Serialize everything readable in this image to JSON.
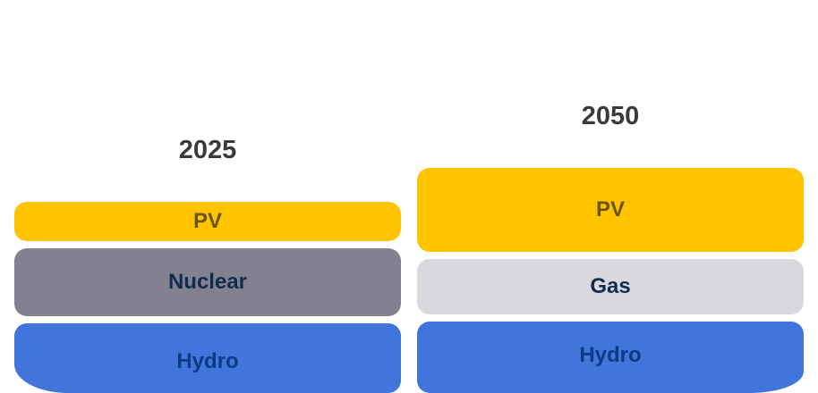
{
  "colors": {
    "pv": "#ffc300",
    "nuclear": "#83818f",
    "gas": "#d9d8dd",
    "hydro": "#4175dc"
  },
  "columns": [
    {
      "title": "2025",
      "blocks": [
        {
          "label": "PV",
          "type": "pv"
        },
        {
          "label": "Nuclear",
          "type": "nuclear"
        },
        {
          "label": "Hydro",
          "type": "hydro"
        }
      ]
    },
    {
      "title": "2050",
      "blocks": [
        {
          "label": "PV",
          "type": "pv"
        },
        {
          "label": "Gas",
          "type": "gas"
        },
        {
          "label": "Hydro",
          "type": "hydro"
        }
      ]
    }
  ]
}
